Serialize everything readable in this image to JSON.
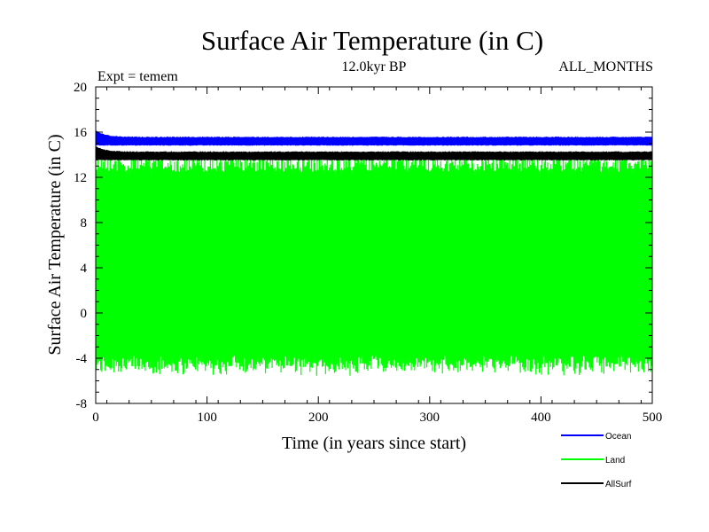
{
  "chart_data": {
    "type": "line",
    "title": "Surface Air Temperature (in C)",
    "subtitle": "12.0kyr BP",
    "expt_label": "Expt = temem",
    "months_label": "ALL_MONTHS",
    "xlabel": "Time (in years since start)",
    "ylabel": "Surface Air Temperature (in C)",
    "xlim": [
      0,
      500
    ],
    "ylim": [
      -8,
      20
    ],
    "x_ticks": [
      "0",
      "100",
      "200",
      "300",
      "400",
      "500"
    ],
    "y_ticks": [
      "-8",
      "-4",
      "0",
      "4",
      "8",
      "12",
      "16",
      "20"
    ],
    "grid": false,
    "legend_position": "bottom-right",
    "series": [
      {
        "name": "Ocean",
        "color": "#0000ff",
        "seasonal_min": 14.8,
        "seasonal_max": 15.6,
        "start_max": 16.2
      },
      {
        "name": "Land",
        "color": "#00ff00",
        "seasonal_min": -4.8,
        "seasonal_max": 14.0,
        "start_max": 14.2
      },
      {
        "name": "AllSurf",
        "color": "#000000",
        "seasonal_min": 13.5,
        "seasonal_max": 14.3,
        "start_max": 14.8
      }
    ]
  }
}
